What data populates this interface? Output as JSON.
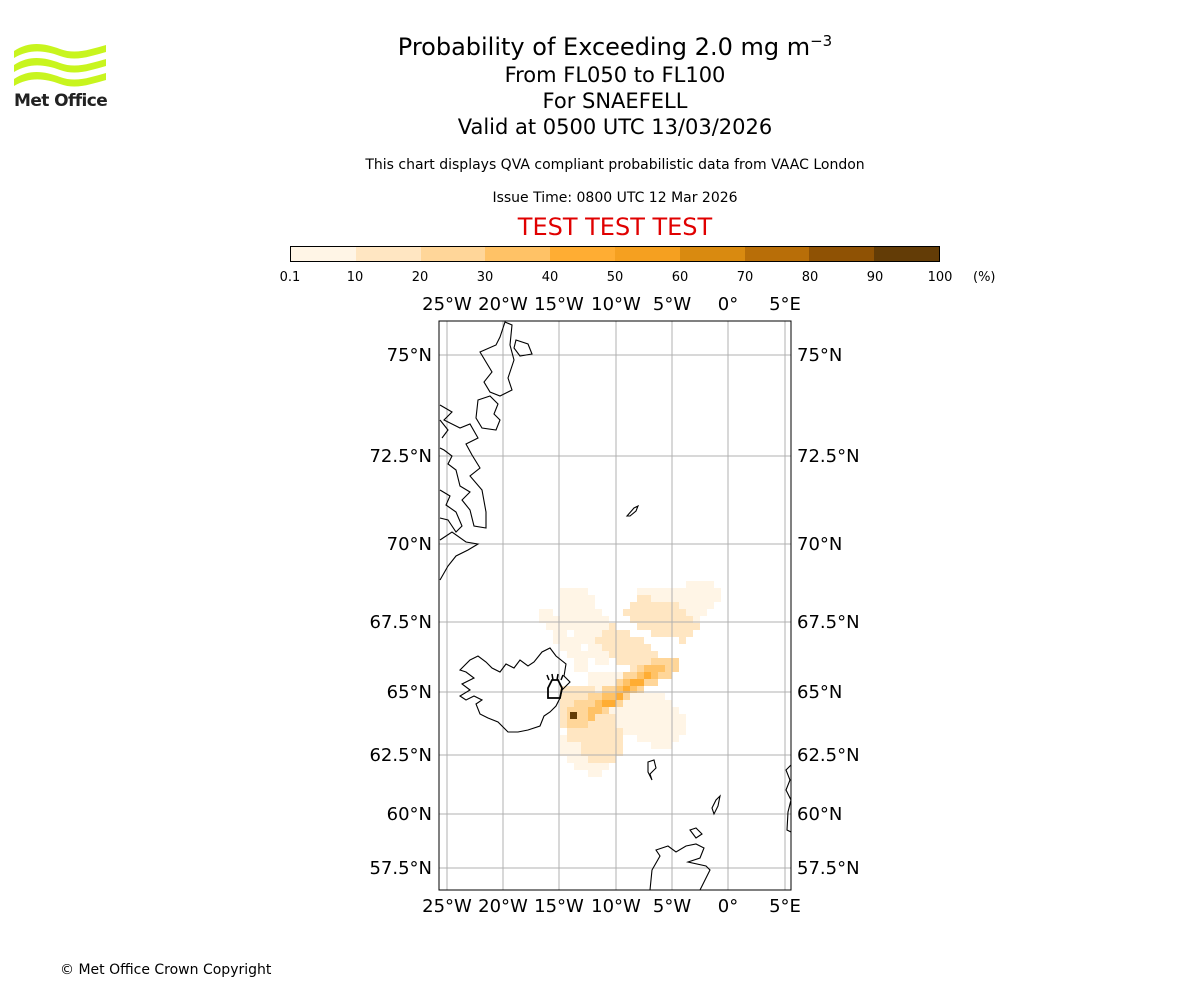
{
  "header": {
    "title_main": "Probability of Exceeding 2.0 mg m",
    "title_sup": "−3",
    "line2": "From FL050 to FL100",
    "line3": "For SNAEFELL",
    "line4": "Valid at 0500 UTC 13/03/2026",
    "subtitle": "This chart displays QVA compliant probabilistic data from VAAC London",
    "issue_time": "Issue Time: 0800 UTC 12 Mar 2026",
    "test_banner": "TEST TEST TEST",
    "test_color": "#e00000"
  },
  "logo": {
    "text": "Met Office",
    "icon": "met-office-waves-logo",
    "color": "#c8f51e"
  },
  "colorbar": {
    "ticks": [
      "0.1",
      "10",
      "20",
      "30",
      "40",
      "50",
      "60",
      "70",
      "80",
      "90",
      "100"
    ],
    "unit": "(%)",
    "colors": [
      "#fff5e6",
      "#ffe6c2",
      "#ffd699",
      "#ffc266",
      "#ffad33",
      "#f5a020",
      "#d98a10",
      "#b86e08",
      "#8f5204",
      "#633c06"
    ]
  },
  "map": {
    "lon_labels": [
      "25°W",
      "20°W",
      "15°W",
      "10°W",
      "5°W",
      "0°",
      "5°E"
    ],
    "lat_labels": [
      "75°N",
      "72.5°N",
      "70°N",
      "67.5°N",
      "65°N",
      "62.5°N",
      "60°N",
      "57.5°N"
    ],
    "gridline_color": "#b0b0b0",
    "volcano_marker": "volcano-icon",
    "volcano_name": "SNAEFELL"
  },
  "footer": {
    "copyright": "© Met Office Crown Copyright"
  }
}
